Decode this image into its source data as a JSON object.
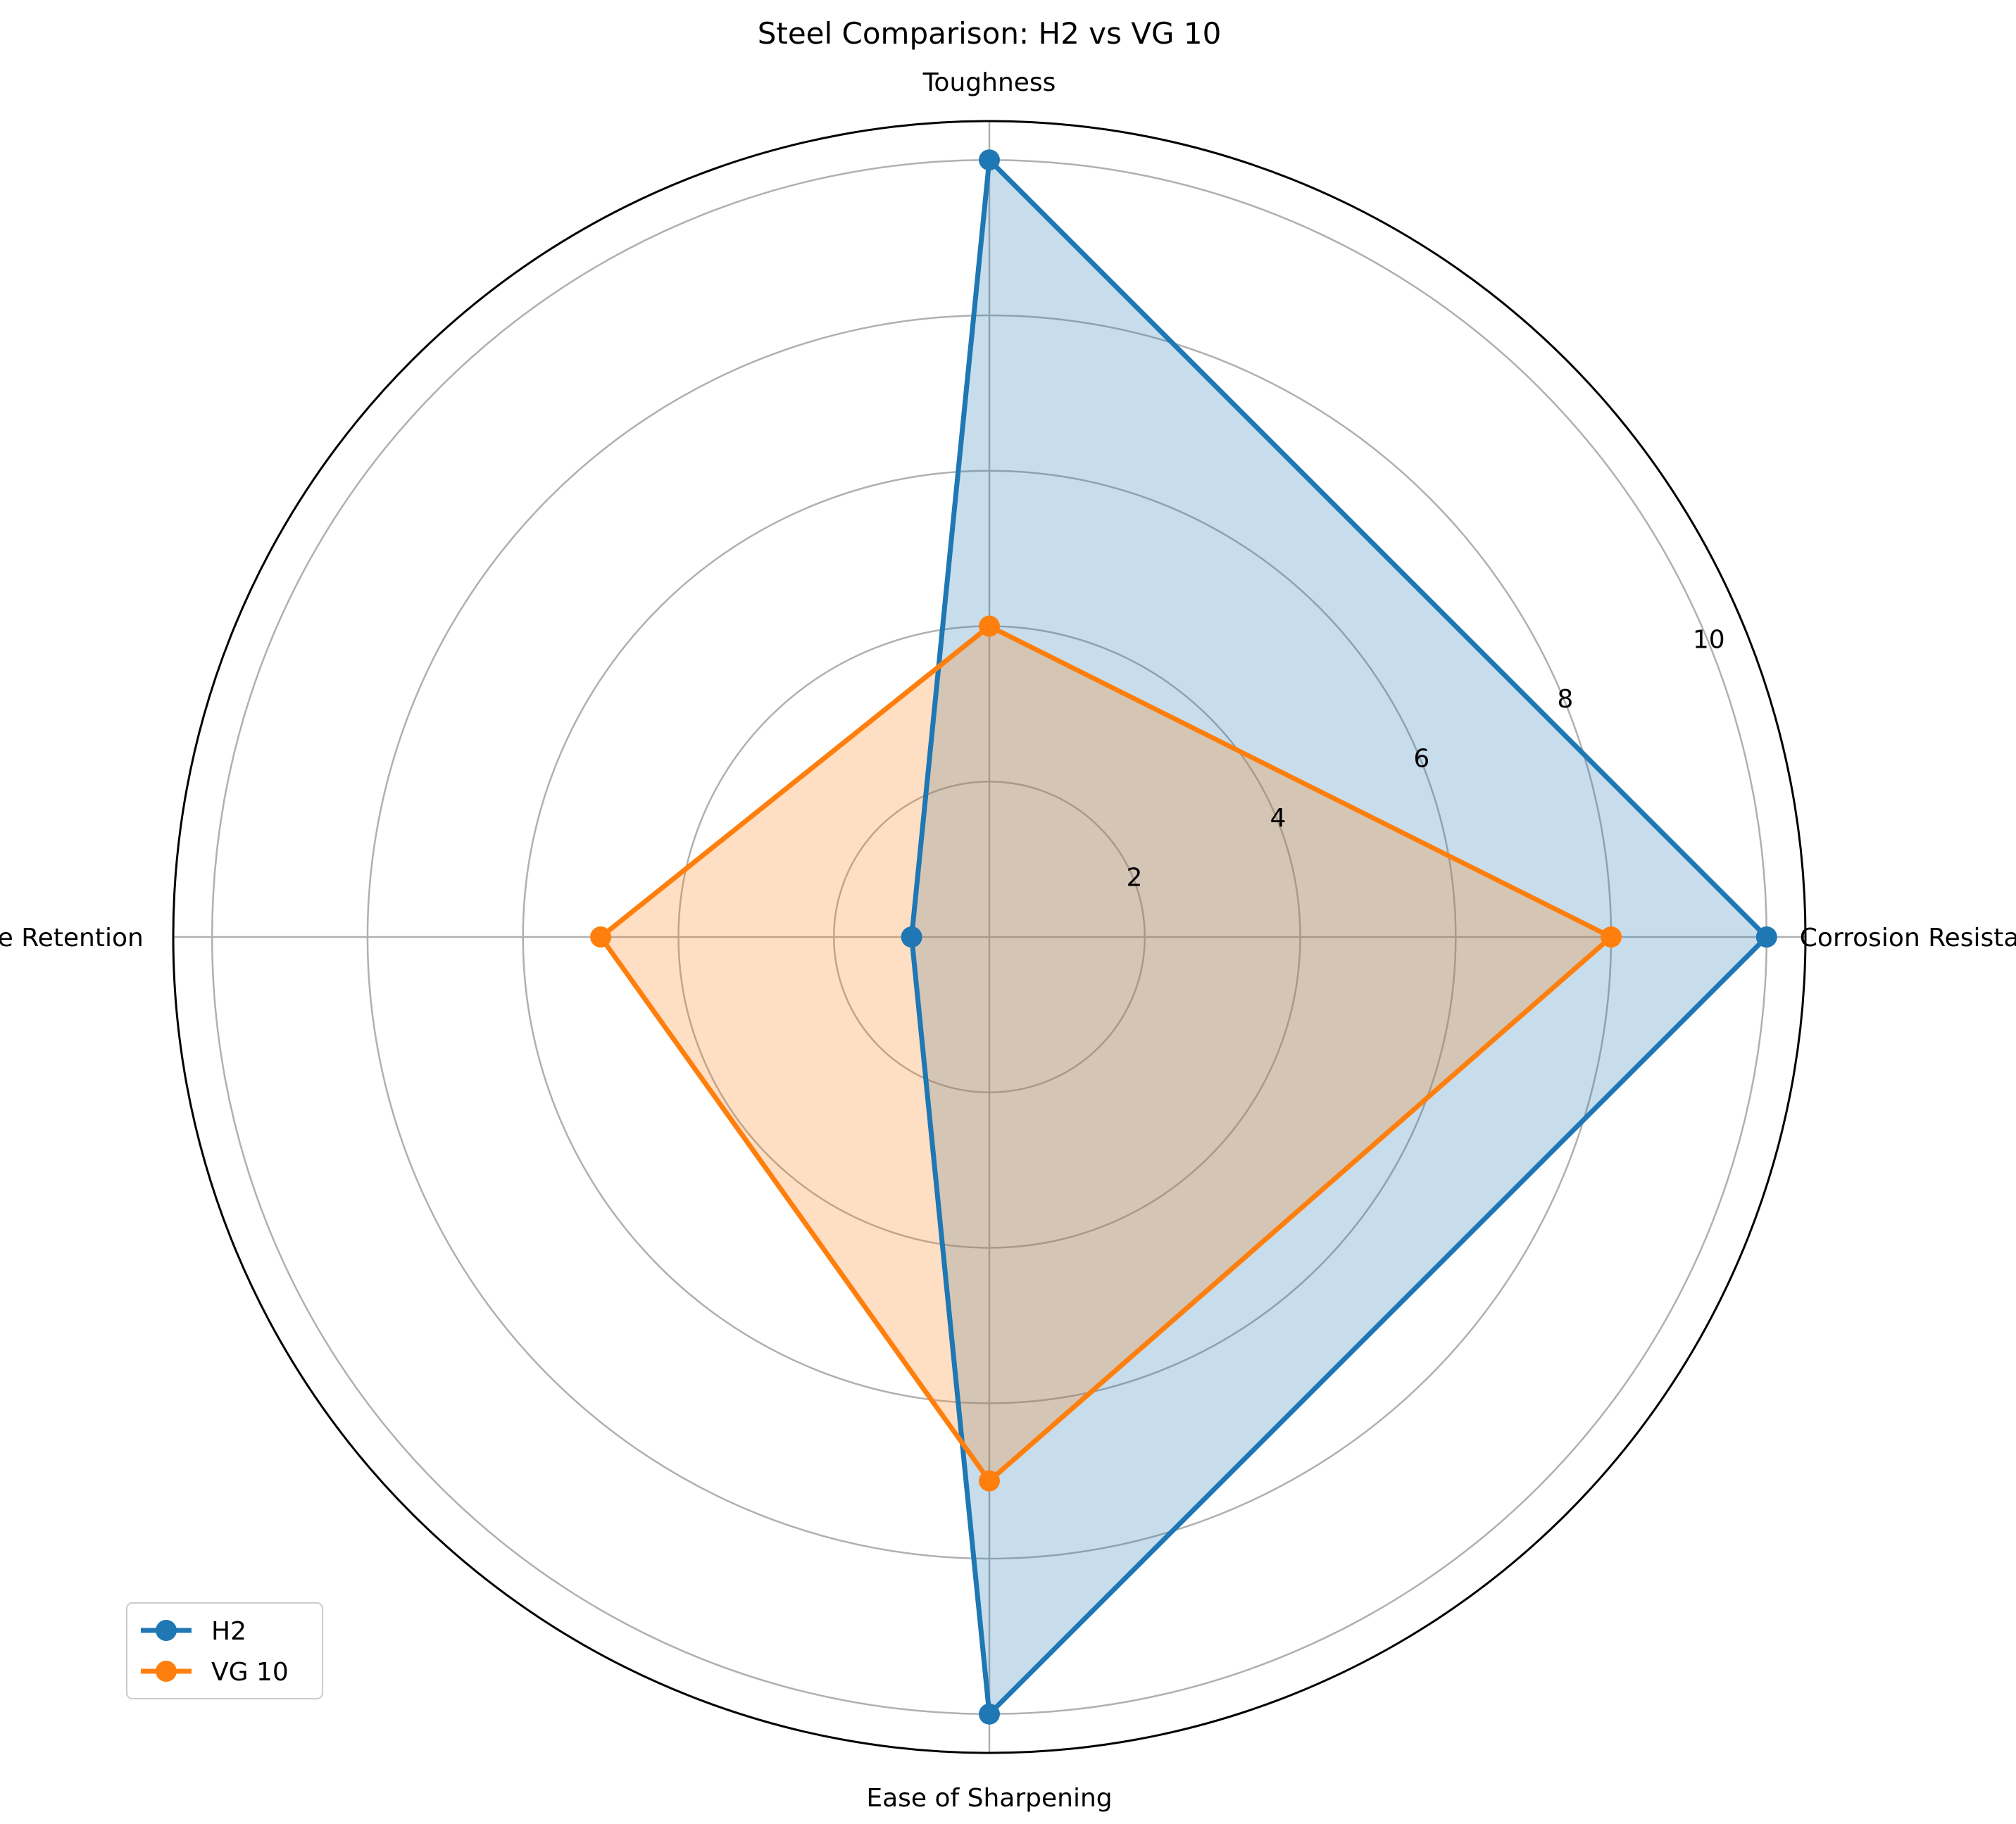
{
  "chart_data": {
    "type": "radar",
    "title": "Steel Comparison: H2 vs VG 10",
    "categories": [
      "Corrosion Resistance",
      "Toughness",
      "Edge Retention",
      "Ease of Sharpening"
    ],
    "series": [
      {
        "name": "H2",
        "values": [
          10,
          10,
          1,
          10
        ],
        "color": "#1f77b4",
        "fill": "#c6dbec"
      },
      {
        "name": "VG 10",
        "values": [
          8,
          4,
          5,
          7
        ],
        "color": "#ff7f0e",
        "fill": "#fedcbd"
      }
    ],
    "r_ticks": [
      "2",
      "4",
      "6",
      "8",
      "10"
    ],
    "rlim": [
      0,
      10.5
    ],
    "grid": true,
    "legend_position": "lower-left"
  }
}
